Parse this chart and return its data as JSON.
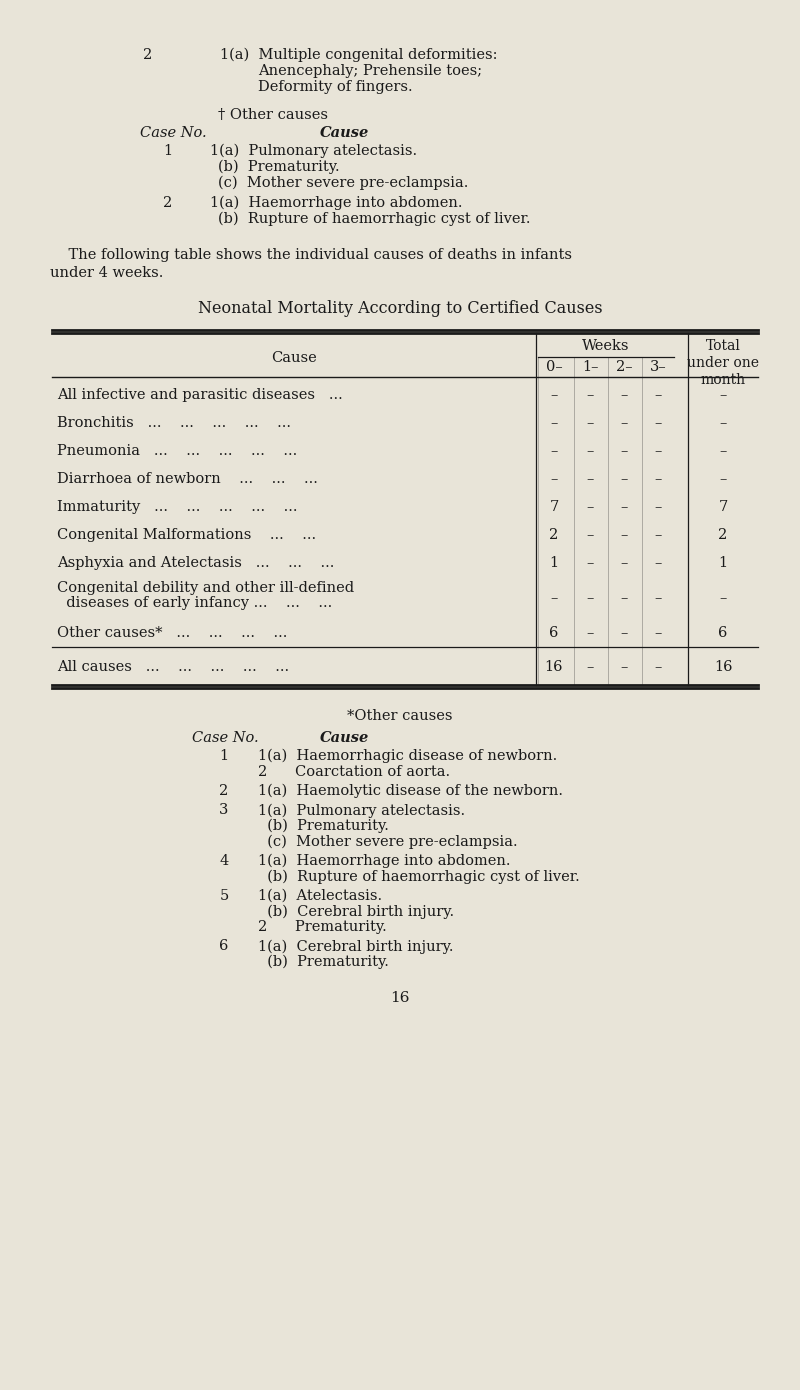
{
  "bg_color": "#e8e4d8",
  "text_color": "#1a1a1a",
  "page_number": "16",
  "top_case2_num": "2",
  "top_case2_lines": [
    "1(a)  Multiple congenital deformities:",
    "Anencephaly; Prehensile toes;",
    "Deformity of fingers."
  ],
  "top_dagger": "† Other causes",
  "top_header_caseno": "Case No.",
  "top_header_cause": "Cause",
  "top_case1_num": "1",
  "top_case1_lines": [
    "1(a)  Pulmonary atelectasis.",
    "(b)  Prematurity.",
    "(c)  Mother severe pre-eclampsia."
  ],
  "top_case2b_num": "2",
  "top_case2b_lines": [
    "1(a)  Haemorrhage into abdomen.",
    "(b)  Rupture of haemorrhagic cyst of liver."
  ],
  "intro_text1": "    The following table shows the individual causes of deaths in infants",
  "intro_text2": "under 4 weeks.",
  "table_title": "Neonatal Mortality According to Certified Causes",
  "weeks_header": "Weeks",
  "week_labels": [
    "0–",
    "1–",
    "2–",
    "3–"
  ],
  "total_header": "Total\nunder one\nmonth",
  "cause_header": "Cause",
  "rows": [
    {
      "cause": "All infective and parasitic diseases   ...",
      "vals": [
        "–",
        "–",
        "–",
        "–",
        "–"
      ]
    },
    {
      "cause": "Bronchitis   ...    ...    ...    ...    ...",
      "vals": [
        "–",
        "–",
        "–",
        "–",
        "–"
      ]
    },
    {
      "cause": "Pneumonia   ...    ...    ...    ...    ...",
      "vals": [
        "–",
        "–",
        "–",
        "–",
        "–"
      ]
    },
    {
      "cause": "Diarrhoea of newborn    ...    ...    ...",
      "vals": [
        "–",
        "–",
        "–",
        "–",
        "–"
      ]
    },
    {
      "cause": "Immaturity   ...    ...    ...    ...    ...",
      "vals": [
        "7",
        "–",
        "–",
        "–",
        "7"
      ]
    },
    {
      "cause": "Congenital Malformations    ...    ...",
      "vals": [
        "2",
        "–",
        "–",
        "–",
        "2"
      ]
    },
    {
      "cause": "Asphyxia and Atelectasis   ...    ...    ...",
      "vals": [
        "1",
        "–",
        "–",
        "–",
        "1"
      ]
    },
    {
      "cause": "Congenital debility and other ill-defined\n  diseases of early infancy ...    ...    ...",
      "vals": [
        "–",
        "–",
        "–",
        "–",
        "–"
      ]
    },
    {
      "cause": "Other causes*   ...    ...    ...    ...",
      "vals": [
        "6",
        "–",
        "–",
        "–",
        "6"
      ]
    }
  ],
  "allcauses": {
    "cause": "All causes   ...    ...    ...    ...    ...",
    "vals": [
      "16",
      "–",
      "–",
      "–",
      "16"
    ]
  },
  "other_causes_title": "*Other causes",
  "other_cases_header_no": "Case No.",
  "other_cases_header_cause": "Cause",
  "other_cases": [
    {
      "num": "1",
      "lines": [
        "1(a)  Haemorrhagic disease of newborn.",
        "2      Coarctation of aorta."
      ]
    },
    {
      "num": "2",
      "lines": [
        "1(a)  Haemolytic disease of the newborn."
      ]
    },
    {
      "num": "3",
      "lines": [
        "1(a)  Pulmonary atelectasis.",
        "  (b)  Prematurity.",
        "  (c)  Mother severe pre-eclampsia."
      ]
    },
    {
      "num": "4",
      "lines": [
        "1(a)  Haemorrhage into abdomen.",
        "  (b)  Rupture of haemorrhagic cyst of liver."
      ]
    },
    {
      "num": "5",
      "lines": [
        "1(a)  Atelectasis.",
        "  (b)  Cerebral birth injury.",
        "2      Prematurity."
      ]
    },
    {
      "num": "6",
      "lines": [
        "1(a)  Cerebral birth injury.",
        "  (b)  Prematurity."
      ]
    }
  ]
}
